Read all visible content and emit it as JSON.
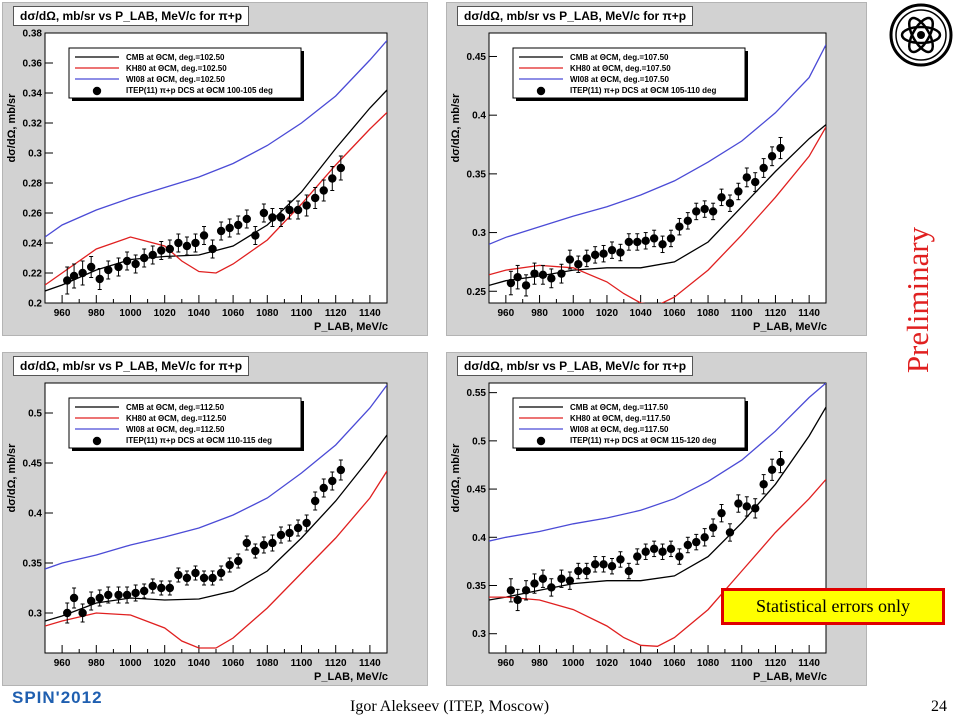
{
  "slide": {
    "preliminary": "Preliminary",
    "stat_note": "Statistical errors only",
    "footer_brand": "SPIN'2012",
    "footer_author": "Igor Alekseev (ITEP, Moscow)",
    "page_number": "24",
    "logo": "itep-emblem-icon"
  },
  "colors": {
    "cmb": "#000000",
    "kh80": "#e02020",
    "wi08": "#4b4bd6",
    "frame_bg": "#d2d2d2",
    "plot_bg": "#ffffff",
    "preliminary": "#e02020",
    "note_bg": "#ffff00",
    "note_border": "#e00000",
    "brand": "#1f5fb0"
  },
  "chart_data": [
    {
      "type": "scatter",
      "title": "dσ/dΩ, mb/sr vs P_LAB, MeV/c for π+p",
      "xlabel": "P_LAB, MeV/c",
      "ylabel": "dσ/dΩ, mb/sr",
      "xlim": [
        950,
        1150
      ],
      "ylim": [
        0.2,
        0.38
      ],
      "grid": false,
      "legend": "top-left",
      "xticks": [
        960,
        980,
        1000,
        1020,
        1040,
        1060,
        1080,
        1100,
        1120,
        1140
      ],
      "yticks": [
        0.2,
        0.22,
        0.24,
        0.26,
        0.28,
        0.3,
        0.32,
        0.34,
        0.36,
        0.38
      ],
      "series": [
        {
          "name": "CMB  at ΘCM, deg.=102.50",
          "kind": "line",
          "x": [
            950,
            960,
            980,
            1000,
            1020,
            1040,
            1060,
            1080,
            1100,
            1120,
            1140,
            1150
          ],
          "y": [
            0.208,
            0.212,
            0.222,
            0.229,
            0.231,
            0.232,
            0.238,
            0.252,
            0.274,
            0.303,
            0.33,
            0.342
          ]
        },
        {
          "name": "KH80  at ΘCM, deg.=102.50",
          "kind": "line",
          "x": [
            950,
            960,
            980,
            1000,
            1020,
            1030,
            1040,
            1050,
            1060,
            1080,
            1100,
            1120,
            1140,
            1150
          ],
          "y": [
            0.212,
            0.22,
            0.236,
            0.244,
            0.238,
            0.228,
            0.221,
            0.22,
            0.226,
            0.242,
            0.266,
            0.292,
            0.316,
            0.327
          ]
        },
        {
          "name": "WI08  at ΘCM, deg.=102.50",
          "kind": "line",
          "x": [
            950,
            960,
            980,
            1000,
            1020,
            1040,
            1060,
            1080,
            1100,
            1120,
            1140,
            1150
          ],
          "y": [
            0.244,
            0.252,
            0.262,
            0.27,
            0.277,
            0.284,
            0.293,
            0.305,
            0.32,
            0.338,
            0.362,
            0.375
          ]
        },
        {
          "name": "ITEP(11) π+p DCS at ΘCM 100-105 deg",
          "kind": "points",
          "x": [
            963,
            967,
            972,
            977,
            982,
            987,
            993,
            998,
            1003,
            1008,
            1013,
            1018,
            1023,
            1028,
            1033,
            1038,
            1043,
            1048,
            1053,
            1058,
            1063,
            1068,
            1073,
            1078,
            1083,
            1088,
            1093,
            1098,
            1103,
            1108,
            1113,
            1118,
            1123
          ],
          "y": [
            0.215,
            0.218,
            0.22,
            0.224,
            0.216,
            0.222,
            0.224,
            0.228,
            0.226,
            0.23,
            0.232,
            0.235,
            0.236,
            0.24,
            0.238,
            0.24,
            0.245,
            0.236,
            0.248,
            0.25,
            0.252,
            0.256,
            0.245,
            0.26,
            0.257,
            0.257,
            0.262,
            0.262,
            0.265,
            0.27,
            0.275,
            0.283,
            0.29
          ],
          "err": [
            0.009,
            0.008,
            0.008,
            0.007,
            0.007,
            0.006,
            0.006,
            0.006,
            0.006,
            0.006,
            0.006,
            0.006,
            0.006,
            0.006,
            0.006,
            0.006,
            0.006,
            0.006,
            0.006,
            0.006,
            0.006,
            0.006,
            0.006,
            0.006,
            0.006,
            0.006,
            0.006,
            0.006,
            0.007,
            0.007,
            0.007,
            0.008,
            0.008
          ]
        }
      ]
    },
    {
      "type": "scatter",
      "title": "dσ/dΩ, mb/sr vs P_LAB, MeV/c for π+p",
      "xlabel": "P_LAB, MeV/c",
      "ylabel": "dσ/dΩ, mb/sr",
      "xlim": [
        950,
        1150
      ],
      "ylim": [
        0.24,
        0.47
      ],
      "grid": false,
      "legend": "top-left",
      "xticks": [
        960,
        980,
        1000,
        1020,
        1040,
        1060,
        1080,
        1100,
        1120,
        1140
      ],
      "yticks": [
        0.25,
        0.3,
        0.35,
        0.4,
        0.45
      ],
      "series": [
        {
          "name": "CMB  at ΘCM, deg.=107.50",
          "kind": "line",
          "x": [
            950,
            960,
            980,
            1000,
            1020,
            1040,
            1060,
            1080,
            1100,
            1120,
            1140,
            1150
          ],
          "y": [
            0.255,
            0.259,
            0.263,
            0.268,
            0.27,
            0.27,
            0.275,
            0.292,
            0.322,
            0.352,
            0.38,
            0.392
          ]
        },
        {
          "name": "KH80  at ΘCM, deg.=107.50",
          "kind": "line",
          "x": [
            950,
            960,
            980,
            1000,
            1020,
            1030,
            1040,
            1050,
            1060,
            1080,
            1100,
            1120,
            1140,
            1150
          ],
          "y": [
            0.264,
            0.268,
            0.272,
            0.27,
            0.258,
            0.248,
            0.24,
            0.238,
            0.245,
            0.268,
            0.298,
            0.33,
            0.365,
            0.39
          ]
        },
        {
          "name": "WI08  at ΘCM, deg.=107.50",
          "kind": "line",
          "x": [
            950,
            960,
            980,
            1000,
            1020,
            1040,
            1060,
            1080,
            1100,
            1120,
            1140,
            1150
          ],
          "y": [
            0.29,
            0.296,
            0.305,
            0.314,
            0.322,
            0.332,
            0.344,
            0.36,
            0.378,
            0.402,
            0.432,
            0.46
          ]
        },
        {
          "name": "ITEP(11) π+p DCS at ΘCM 105-110 deg",
          "kind": "points",
          "x": [
            963,
            967,
            972,
            977,
            982,
            987,
            993,
            998,
            1003,
            1008,
            1013,
            1018,
            1023,
            1028,
            1033,
            1038,
            1043,
            1048,
            1053,
            1058,
            1063,
            1068,
            1073,
            1078,
            1083,
            1088,
            1093,
            1098,
            1103,
            1108,
            1113,
            1118,
            1123
          ],
          "y": [
            0.257,
            0.262,
            0.255,
            0.265,
            0.264,
            0.261,
            0.265,
            0.277,
            0.273,
            0.278,
            0.281,
            0.282,
            0.285,
            0.283,
            0.292,
            0.292,
            0.293,
            0.295,
            0.29,
            0.295,
            0.305,
            0.31,
            0.318,
            0.32,
            0.318,
            0.33,
            0.325,
            0.335,
            0.347,
            0.343,
            0.355,
            0.365,
            0.372
          ],
          "err": [
            0.01,
            0.01,
            0.009,
            0.009,
            0.008,
            0.008,
            0.008,
            0.008,
            0.007,
            0.007,
            0.007,
            0.007,
            0.007,
            0.007,
            0.007,
            0.007,
            0.007,
            0.007,
            0.007,
            0.007,
            0.007,
            0.007,
            0.007,
            0.007,
            0.007,
            0.007,
            0.007,
            0.007,
            0.008,
            0.008,
            0.008,
            0.008,
            0.009
          ]
        }
      ]
    },
    {
      "type": "scatter",
      "title": "dσ/dΩ, mb/sr vs P_LAB, MeV/c for π+p",
      "xlabel": "P_LAB, MeV/c",
      "ylabel": "dσ/dΩ, mb/sr",
      "xlim": [
        950,
        1150
      ],
      "ylim": [
        0.26,
        0.53
      ],
      "grid": false,
      "legend": "top-left",
      "xticks": [
        960,
        980,
        1000,
        1020,
        1040,
        1060,
        1080,
        1100,
        1120,
        1140
      ],
      "yticks": [
        0.3,
        0.35,
        0.4,
        0.45,
        0.5
      ],
      "series": [
        {
          "name": "CMB  at ΘCM, deg.=112.50",
          "kind": "line",
          "x": [
            950,
            960,
            980,
            1000,
            1020,
            1040,
            1060,
            1080,
            1100,
            1120,
            1140,
            1150
          ],
          "y": [
            0.292,
            0.297,
            0.31,
            0.315,
            0.313,
            0.314,
            0.322,
            0.342,
            0.375,
            0.412,
            0.455,
            0.478
          ]
        },
        {
          "name": "KH80  at ΘCM, deg.=112.50",
          "kind": "line",
          "x": [
            950,
            960,
            980,
            1000,
            1020,
            1030,
            1040,
            1050,
            1060,
            1080,
            1100,
            1120,
            1140,
            1150
          ],
          "y": [
            0.287,
            0.292,
            0.3,
            0.298,
            0.285,
            0.272,
            0.265,
            0.265,
            0.275,
            0.305,
            0.34,
            0.375,
            0.415,
            0.442
          ]
        },
        {
          "name": "WI08  at ΘCM, deg.=112.50",
          "kind": "line",
          "x": [
            950,
            960,
            980,
            1000,
            1020,
            1040,
            1060,
            1080,
            1100,
            1120,
            1140,
            1150
          ],
          "y": [
            0.344,
            0.35,
            0.358,
            0.368,
            0.376,
            0.385,
            0.398,
            0.415,
            0.44,
            0.468,
            0.505,
            0.528
          ]
        },
        {
          "name": "ITEP(11) π+p DCS at ΘCM 110-115 deg",
          "kind": "points",
          "x": [
            963,
            967,
            972,
            977,
            982,
            987,
            993,
            998,
            1003,
            1008,
            1013,
            1018,
            1023,
            1028,
            1033,
            1038,
            1043,
            1048,
            1053,
            1058,
            1063,
            1068,
            1073,
            1078,
            1083,
            1088,
            1093,
            1098,
            1103,
            1108,
            1113,
            1118,
            1123
          ],
          "y": [
            0.3,
            0.315,
            0.3,
            0.312,
            0.315,
            0.318,
            0.318,
            0.318,
            0.32,
            0.322,
            0.327,
            0.325,
            0.325,
            0.338,
            0.335,
            0.34,
            0.335,
            0.335,
            0.34,
            0.348,
            0.352,
            0.37,
            0.362,
            0.368,
            0.37,
            0.378,
            0.38,
            0.385,
            0.39,
            0.412,
            0.425,
            0.432,
            0.443
          ],
          "err": [
            0.01,
            0.01,
            0.009,
            0.009,
            0.008,
            0.008,
            0.008,
            0.008,
            0.008,
            0.007,
            0.007,
            0.007,
            0.007,
            0.007,
            0.007,
            0.007,
            0.007,
            0.007,
            0.007,
            0.007,
            0.007,
            0.007,
            0.007,
            0.008,
            0.008,
            0.008,
            0.008,
            0.008,
            0.008,
            0.009,
            0.009,
            0.009,
            0.01
          ]
        }
      ]
    },
    {
      "type": "scatter",
      "title": "dσ/dΩ, mb/sr vs P_LAB, MeV/c for π+p",
      "xlabel": "P_LAB, MeV/c",
      "ylabel": "dσ/dΩ, mb/sr",
      "xlim": [
        950,
        1150
      ],
      "ylim": [
        0.28,
        0.56
      ],
      "grid": false,
      "legend": "top-left",
      "xticks": [
        960,
        980,
        1000,
        1020,
        1040,
        1060,
        1080,
        1100,
        1120,
        1140
      ],
      "yticks": [
        0.3,
        0.35,
        0.4,
        0.45,
        0.5,
        0.55
      ],
      "series": [
        {
          "name": "CMB  at ΘCM, deg.=117.50",
          "kind": "line",
          "x": [
            950,
            960,
            980,
            1000,
            1020,
            1040,
            1060,
            1080,
            1100,
            1120,
            1140,
            1150
          ],
          "y": [
            0.335,
            0.338,
            0.345,
            0.352,
            0.355,
            0.355,
            0.36,
            0.38,
            0.415,
            0.455,
            0.505,
            0.535
          ]
        },
        {
          "name": "KH80  at ΘCM, deg.=117.50",
          "kind": "line",
          "x": [
            950,
            960,
            980,
            1000,
            1020,
            1030,
            1040,
            1050,
            1060,
            1080,
            1100,
            1120,
            1140,
            1150
          ],
          "y": [
            0.338,
            0.338,
            0.335,
            0.325,
            0.308,
            0.296,
            0.288,
            0.287,
            0.296,
            0.325,
            0.365,
            0.405,
            0.44,
            0.46
          ]
        },
        {
          "name": "WI08  at ΘCM, deg.=117.50",
          "kind": "line",
          "x": [
            950,
            960,
            980,
            1000,
            1020,
            1040,
            1060,
            1080,
            1100,
            1120,
            1140,
            1150
          ],
          "y": [
            0.396,
            0.4,
            0.406,
            0.414,
            0.42,
            0.428,
            0.44,
            0.458,
            0.48,
            0.51,
            0.545,
            0.56
          ]
        },
        {
          "name": "ITEP(11) π+p DCS at ΘCM 115-120 deg",
          "kind": "points",
          "x": [
            963,
            967,
            972,
            977,
            982,
            987,
            993,
            998,
            1003,
            1008,
            1013,
            1018,
            1023,
            1028,
            1033,
            1038,
            1043,
            1048,
            1053,
            1058,
            1063,
            1068,
            1073,
            1078,
            1083,
            1088,
            1093,
            1098,
            1103,
            1108,
            1113,
            1118,
            1123
          ],
          "y": [
            0.345,
            0.335,
            0.345,
            0.352,
            0.357,
            0.348,
            0.357,
            0.355,
            0.365,
            0.365,
            0.372,
            0.372,
            0.37,
            0.377,
            0.365,
            0.38,
            0.385,
            0.388,
            0.385,
            0.388,
            0.38,
            0.392,
            0.395,
            0.4,
            0.41,
            0.425,
            0.405,
            0.435,
            0.432,
            0.43,
            0.455,
            0.47,
            0.478
          ],
          "err": [
            0.012,
            0.011,
            0.01,
            0.01,
            0.009,
            0.009,
            0.009,
            0.009,
            0.008,
            0.008,
            0.008,
            0.008,
            0.008,
            0.008,
            0.008,
            0.008,
            0.008,
            0.008,
            0.008,
            0.008,
            0.008,
            0.008,
            0.008,
            0.009,
            0.009,
            0.009,
            0.009,
            0.009,
            0.01,
            0.01,
            0.01,
            0.011,
            0.011
          ]
        }
      ]
    }
  ]
}
